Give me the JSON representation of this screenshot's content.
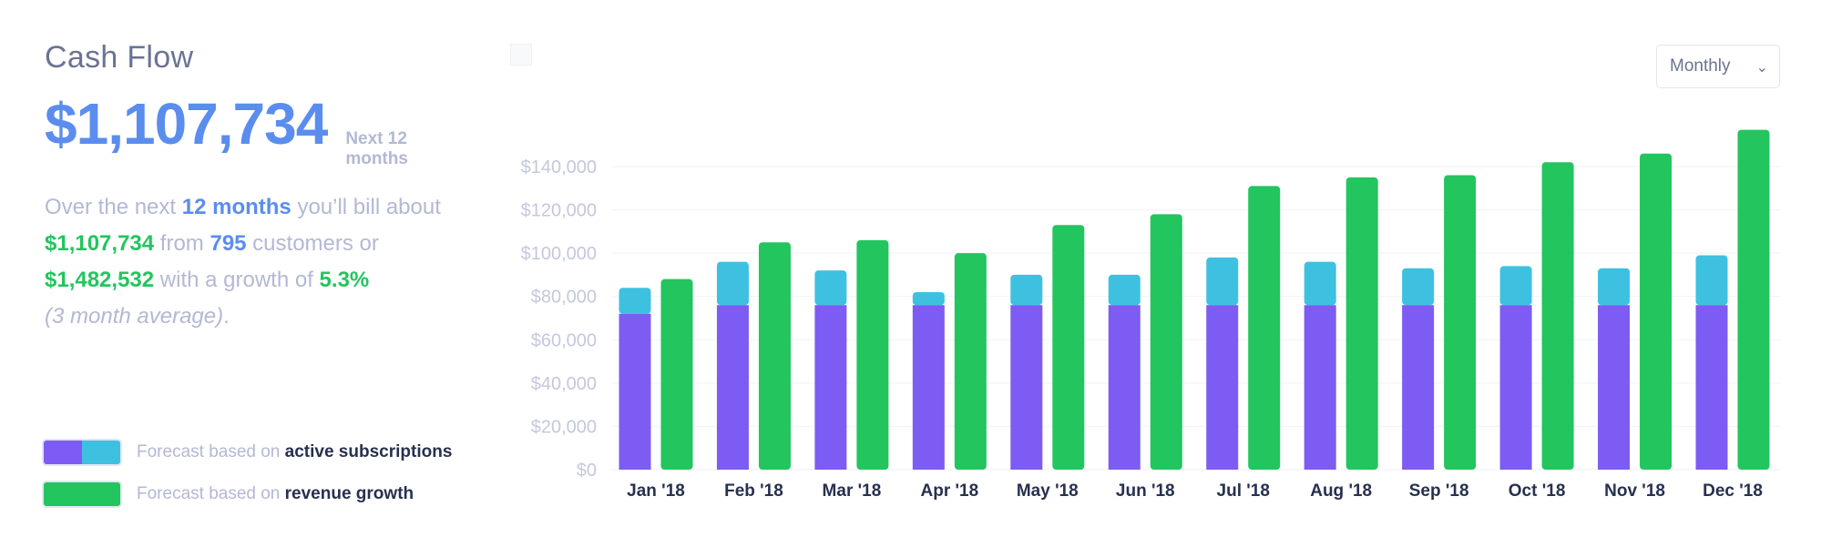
{
  "header": {
    "title": "Cash Flow",
    "total": "$1,107,734",
    "period_note": "Next 12 months"
  },
  "summary": {
    "p1": "Over the next ",
    "months": "12 months",
    "p2": " you’ll bill about",
    "amount": "$1,107,734",
    "p3": " from ",
    "customers": "795",
    "p4": " customers or",
    "growth_amount": "$1,482,532",
    "p5": " with a growth of ",
    "growth_rate": "5.3%",
    "note": "(3 month average)",
    "period": "."
  },
  "controls": {
    "interval_select": "Monthly"
  },
  "legend": {
    "items": [
      {
        "prefix": "Forecast based on ",
        "strong": "active subscriptions",
        "colors": [
          "#7c5cf2",
          "#3ec1e0"
        ]
      },
      {
        "prefix": "Forecast based on ",
        "strong": "revenue growth",
        "colors": [
          "#22c55e"
        ]
      }
    ]
  },
  "chart_data": {
    "type": "bar",
    "categories": [
      "Jan '18",
      "Feb '18",
      "Mar '18",
      "Apr '18",
      "May '18",
      "Jun '18",
      "Jul '18",
      "Aug '18",
      "Sep '18",
      "Oct '18",
      "Nov '18",
      "Dec '18"
    ],
    "ylim": [
      0,
      150000
    ],
    "yticks": [
      0,
      20000,
      40000,
      60000,
      80000,
      100000,
      120000,
      140000
    ],
    "ytick_labels": [
      "$0",
      "$20,000",
      "$40,000",
      "$60,000",
      "$80,000",
      "$100,000",
      "$120,000",
      "$140,000"
    ],
    "grid": true,
    "series": [
      {
        "name": "active subscriptions (base)",
        "stack": "subs",
        "color": "#7c5cf2",
        "values": [
          72000,
          76000,
          76000,
          76000,
          76000,
          76000,
          76000,
          76000,
          76000,
          76000,
          76000,
          76000
        ]
      },
      {
        "name": "active subscriptions (additional)",
        "stack": "subs",
        "color": "#3ec1e0",
        "values": [
          12000,
          20000,
          16000,
          6000,
          14000,
          14000,
          22000,
          20000,
          17000,
          18000,
          17000,
          23000
        ]
      },
      {
        "name": "revenue growth",
        "stack": "growth",
        "color": "#22c55e",
        "values": [
          88000,
          105000,
          106000,
          100000,
          113000,
          118000,
          131000,
          135000,
          136000,
          142000,
          146000,
          157000
        ]
      }
    ]
  }
}
